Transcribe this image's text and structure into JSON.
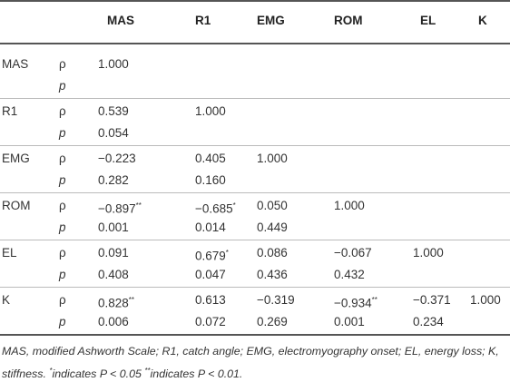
{
  "header": {
    "columns": [
      "MAS",
      "R1",
      "EMG",
      "ROM",
      "EL",
      "K"
    ]
  },
  "groups": [
    {
      "label": "MAS",
      "rows": [
        {
          "stat": "ρ",
          "cells": [
            "1.000"
          ]
        },
        {
          "stat": "p",
          "cells": []
        }
      ]
    },
    {
      "label": "R1",
      "rows": [
        {
          "stat": "ρ",
          "cells": [
            "0.539",
            "1.000"
          ]
        },
        {
          "stat": "p",
          "cells": [
            "0.054"
          ]
        }
      ]
    },
    {
      "label": "EMG",
      "rows": [
        {
          "stat": "ρ",
          "cells": [
            "−0.223",
            "0.405",
            "1.000"
          ]
        },
        {
          "stat": "p",
          "cells": [
            "0.282",
            "0.160"
          ]
        }
      ]
    },
    {
      "label": "ROM",
      "rows": [
        {
          "stat": "ρ",
          "cells": [
            {
              "value": "−0.897",
              "sup": "**"
            },
            {
              "value": "−0.685",
              "sup": "*"
            },
            "0.050",
            "1.000"
          ]
        },
        {
          "stat": "p",
          "cells": [
            "0.001",
            "0.014",
            "0.449"
          ]
        }
      ]
    },
    {
      "label": "EL",
      "rows": [
        {
          "stat": "ρ",
          "cells": [
            "0.091",
            {
              "value": "0.679",
              "sup": "*"
            },
            "0.086",
            "−0.067",
            "1.000"
          ]
        },
        {
          "stat": "p",
          "cells": [
            "0.408",
            "0.047",
            "0.436",
            "0.432"
          ]
        }
      ]
    },
    {
      "label": "K",
      "rows": [
        {
          "stat": "ρ",
          "cells": [
            {
              "value": "0.828",
              "sup": "**"
            },
            "0.613",
            "−0.319",
            {
              "value": "−0.934",
              "sup": "**"
            },
            "−0.371",
            "1.000"
          ]
        },
        {
          "stat": "p",
          "cells": [
            "0.006",
            "0.072",
            "0.269",
            "0.001",
            "0.234"
          ]
        }
      ]
    }
  ],
  "footnote": {
    "text": "MAS, modified Ashworth Scale; R1, catch angle; EMG, electromyography onset; EL, energy loss; K, stiffness. ",
    "sup1": "*",
    "note1": "indicates P < 0.05 ",
    "sup2": "**",
    "note2": "indicates P < 0.01."
  }
}
